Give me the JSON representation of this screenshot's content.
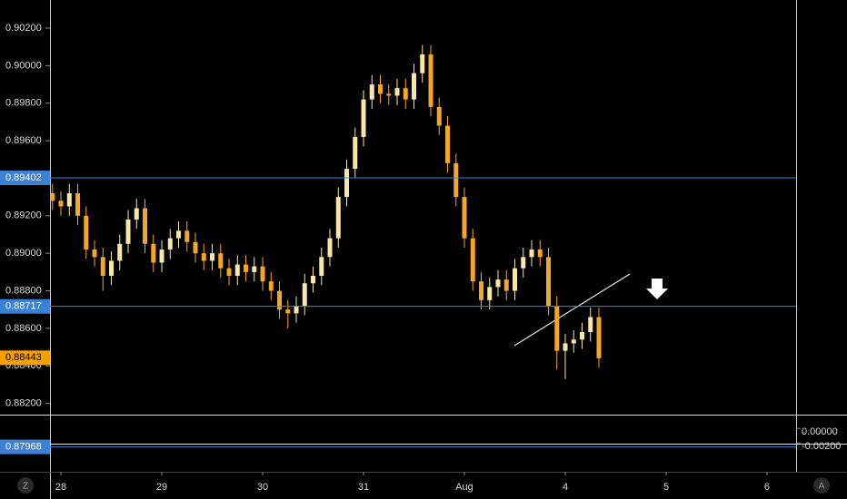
{
  "chart_data": {
    "type": "candlestick",
    "open": [
      0.8932,
      0.8928,
      0.8925,
      0.8932,
      0.892,
      0.8902,
      0.8898,
      0.8888,
      0.8896,
      0.8905,
      0.8918,
      0.8924,
      0.8905,
      0.8895,
      0.8902,
      0.8908,
      0.8912,
      0.8906,
      0.89,
      0.8896,
      0.89,
      0.8892,
      0.8888,
      0.8894,
      0.889,
      0.8893,
      0.8885,
      0.888,
      0.887,
      0.8868,
      0.8872,
      0.8884,
      0.8888,
      0.8898,
      0.8908,
      0.893,
      0.8945,
      0.8962,
      0.8982,
      0.899,
      0.8985,
      0.8984,
      0.8988,
      0.8982,
      0.8996,
      0.9006,
      0.8978,
      0.8968,
      0.8948,
      0.893,
      0.8908,
      0.8885,
      0.8875,
      0.8882,
      0.8886,
      0.888,
      0.8892,
      0.8898,
      0.8902,
      0.8898,
      0.8872,
      0.8848,
      0.8852,
      0.8854,
      0.8858,
      0.8866
    ],
    "high": [
      0.8937,
      0.8933,
      0.8937,
      0.8937,
      0.8925,
      0.8907,
      0.8903,
      0.8901,
      0.891,
      0.8923,
      0.8929,
      0.8929,
      0.891,
      0.8907,
      0.8913,
      0.8917,
      0.8917,
      0.8911,
      0.8905,
      0.8905,
      0.8905,
      0.8897,
      0.8899,
      0.8899,
      0.8898,
      0.8898,
      0.889,
      0.8885,
      0.8875,
      0.8877,
      0.8889,
      0.8893,
      0.8903,
      0.8913,
      0.8935,
      0.895,
      0.8967,
      0.8987,
      0.8995,
      0.8995,
      0.899,
      0.8993,
      0.8993,
      0.9001,
      0.9011,
      0.9011,
      0.8983,
      0.8973,
      0.8953,
      0.8935,
      0.8913,
      0.889,
      0.8887,
      0.8891,
      0.8891,
      0.8897,
      0.8903,
      0.8907,
      0.8907,
      0.8903,
      0.8877,
      0.8857,
      0.8859,
      0.8863,
      0.8871,
      0.8871
    ],
    "low": [
      0.8923,
      0.892,
      0.892,
      0.8915,
      0.8897,
      0.8893,
      0.888,
      0.8883,
      0.8891,
      0.89,
      0.8913,
      0.89,
      0.889,
      0.889,
      0.8897,
      0.8903,
      0.8901,
      0.8895,
      0.8891,
      0.8891,
      0.8887,
      0.8883,
      0.8883,
      0.8885,
      0.8885,
      0.888,
      0.8875,
      0.8865,
      0.886,
      0.8863,
      0.8867,
      0.8879,
      0.8883,
      0.8893,
      0.8903,
      0.8925,
      0.894,
      0.8957,
      0.8977,
      0.898,
      0.8979,
      0.8979,
      0.8977,
      0.8977,
      0.8991,
      0.8973,
      0.8963,
      0.8943,
      0.8925,
      0.8903,
      0.888,
      0.887,
      0.887,
      0.8877,
      0.8875,
      0.8875,
      0.8887,
      0.8893,
      0.8893,
      0.8867,
      0.8838,
      0.8833,
      0.8847,
      0.8849,
      0.8853,
      0.8839
    ],
    "close": [
      0.8928,
      0.8925,
      0.8932,
      0.892,
      0.8902,
      0.8898,
      0.8888,
      0.8896,
      0.8905,
      0.8918,
      0.8924,
      0.8905,
      0.8895,
      0.8902,
      0.8908,
      0.8912,
      0.8906,
      0.89,
      0.8896,
      0.89,
      0.8892,
      0.8888,
      0.8894,
      0.889,
      0.8893,
      0.8885,
      0.888,
      0.887,
      0.8868,
      0.8872,
      0.8884,
      0.8888,
      0.8898,
      0.8908,
      0.893,
      0.8945,
      0.8962,
      0.8982,
      0.899,
      0.8985,
      0.8984,
      0.8988,
      0.8982,
      0.8996,
      0.9006,
      0.8978,
      0.8968,
      0.8948,
      0.893,
      0.8908,
      0.8885,
      0.8875,
      0.8882,
      0.8886,
      0.888,
      0.8892,
      0.8898,
      0.8902,
      0.8898,
      0.8872,
      0.8848,
      0.8852,
      0.8854,
      0.8858,
      0.8866,
      0.8844
    ],
    "up_color": "#f8e8a6",
    "down_color": "#f5a623",
    "ylim": [
      0.8814,
      0.9035
    ],
    "yticks": [
      {
        "value": 0.902,
        "label": "0.90200"
      },
      {
        "value": 0.9,
        "label": "0.90000"
      },
      {
        "value": 0.898,
        "label": "0.89800"
      },
      {
        "value": 0.896,
        "label": "0.89600"
      },
      {
        "value": 0.892,
        "label": "0.89200"
      },
      {
        "value": 0.89,
        "label": "0.89000"
      },
      {
        "value": 0.888,
        "label": "0.88800"
      },
      {
        "value": 0.886,
        "label": "0.88600"
      },
      {
        "value": 0.884,
        "label": "0.88400"
      },
      {
        "value": 0.882,
        "label": "0.88200"
      }
    ],
    "xlim": [
      -0.3,
      88.46
    ],
    "xticks": [
      {
        "value": 1,
        "label": "28"
      },
      {
        "value": 13,
        "label": "29"
      },
      {
        "value": 25,
        "label": "30"
      },
      {
        "value": 37,
        "label": "31"
      },
      {
        "value": 49,
        "label": "Aug"
      },
      {
        "value": 61,
        "label": "4"
      },
      {
        "value": 73,
        "label": "5"
      },
      {
        "value": 85,
        "label": "6"
      }
    ],
    "levels": [
      0.89402,
      0.88717,
      0.87968
    ],
    "level_color": "#3b82d6",
    "last_price": 0.88443,
    "indicator": {
      "ylim": [
        -0.0021,
        0.0019
      ],
      "yticks": [
        {
          "value": 0,
          "label": "0.00000"
        },
        {
          "value": -0.002,
          "label": "-0.00200"
        }
      ]
    },
    "buttons": [
      "Z",
      "A"
    ]
  }
}
